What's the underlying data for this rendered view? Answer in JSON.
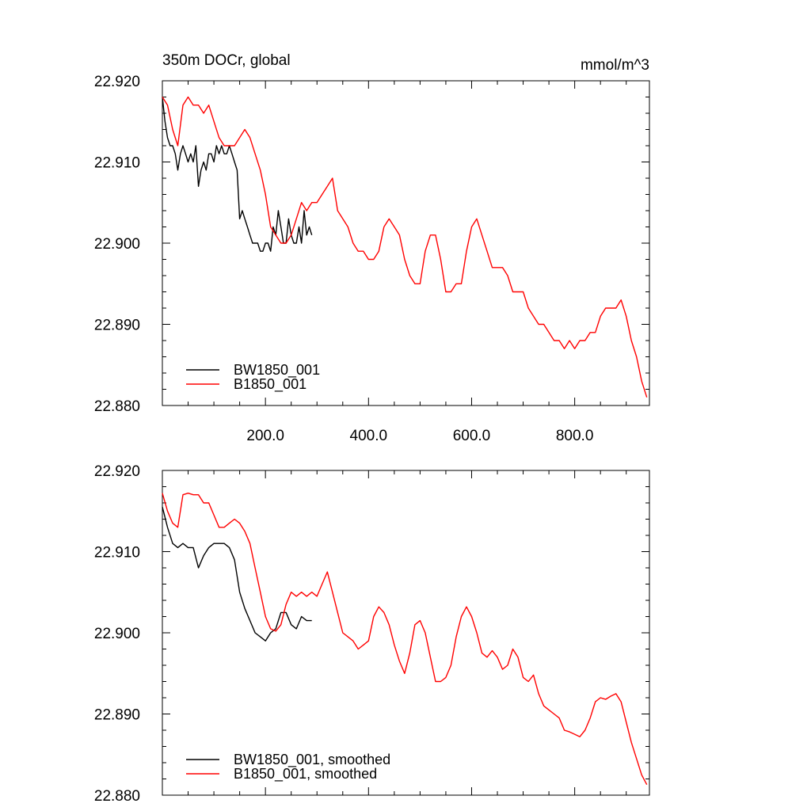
{
  "chart_data": [
    {
      "type": "line",
      "title": "350m DOCr, global",
      "units": "mmol/m^3",
      "xlim": [
        0,
        945
      ],
      "ylim": [
        22.88,
        22.92
      ],
      "x_ticks": [
        200,
        400,
        600,
        800
      ],
      "x_tick_labels": [
        "200.0",
        "400.0",
        "600.0",
        "800.0"
      ],
      "y_ticks": [
        22.88,
        22.89,
        22.9,
        22.91,
        22.92
      ],
      "y_tick_labels": [
        "22.880",
        "22.890",
        "22.900",
        "22.910",
        "22.920"
      ],
      "legend_position": "bottom-left",
      "series": [
        {
          "name": "BW1850_001",
          "color": "#000000",
          "x": [
            0,
            5,
            10,
            15,
            20,
            25,
            30,
            35,
            40,
            45,
            50,
            55,
            60,
            65,
            70,
            75,
            80,
            85,
            90,
            95,
            100,
            105,
            110,
            115,
            120,
            125,
            130,
            135,
            140,
            145,
            150,
            155,
            160,
            165,
            170,
            175,
            180,
            185,
            190,
            195,
            200,
            205,
            210,
            215,
            220,
            225,
            230,
            235,
            240,
            245,
            250,
            255,
            260,
            265,
            270,
            275,
            280,
            285,
            290
          ],
          "values": [
            22.918,
            22.915,
            22.913,
            22.912,
            22.912,
            22.911,
            22.909,
            22.911,
            22.912,
            22.911,
            22.91,
            22.911,
            22.91,
            22.912,
            22.907,
            22.909,
            22.91,
            22.909,
            22.911,
            22.911,
            22.91,
            22.912,
            22.911,
            22.912,
            22.911,
            22.911,
            22.912,
            22.911,
            22.91,
            22.909,
            22.903,
            22.904,
            22.903,
            22.902,
            22.901,
            22.9,
            22.9,
            22.9,
            22.899,
            22.899,
            22.9,
            22.9,
            22.899,
            22.902,
            22.901,
            22.904,
            22.902,
            22.9,
            22.9,
            22.903,
            22.901,
            22.9,
            22.9,
            22.902,
            22.9,
            22.904,
            22.901,
            22.902,
            22.901
          ]
        },
        {
          "name": "B1850_001",
          "color": "#ff0000",
          "x": [
            0,
            10,
            20,
            30,
            40,
            50,
            60,
            70,
            80,
            90,
            100,
            110,
            120,
            130,
            140,
            150,
            160,
            170,
            180,
            190,
            200,
            210,
            220,
            230,
            240,
            250,
            260,
            270,
            280,
            290,
            300,
            310,
            320,
            330,
            340,
            350,
            360,
            370,
            380,
            390,
            400,
            410,
            420,
            430,
            440,
            450,
            460,
            470,
            480,
            490,
            500,
            510,
            520,
            530,
            540,
            550,
            560,
            570,
            580,
            590,
            600,
            610,
            620,
            630,
            640,
            650,
            660,
            670,
            680,
            690,
            700,
            710,
            720,
            730,
            740,
            750,
            760,
            770,
            780,
            790,
            800,
            810,
            820,
            830,
            840,
            850,
            860,
            870,
            880,
            890,
            900,
            910,
            920,
            930,
            940
          ],
          "values": [
            22.918,
            22.917,
            22.914,
            22.912,
            22.917,
            22.918,
            22.917,
            22.917,
            22.916,
            22.917,
            22.915,
            22.913,
            22.912,
            22.912,
            22.912,
            22.913,
            22.914,
            22.913,
            22.911,
            22.909,
            22.906,
            22.902,
            22.901,
            22.9,
            22.9,
            22.901,
            22.903,
            22.905,
            22.904,
            22.905,
            22.905,
            22.906,
            22.907,
            22.908,
            22.904,
            22.903,
            22.902,
            22.9,
            22.899,
            22.899,
            22.898,
            22.898,
            22.899,
            22.902,
            22.903,
            22.902,
            22.901,
            22.898,
            22.896,
            22.895,
            22.895,
            22.899,
            22.901,
            22.901,
            22.898,
            22.894,
            22.894,
            22.895,
            22.895,
            22.899,
            22.902,
            22.903,
            22.901,
            22.899,
            22.897,
            22.897,
            22.897,
            22.896,
            22.894,
            22.894,
            22.894,
            22.892,
            22.891,
            22.89,
            22.89,
            22.889,
            22.888,
            22.888,
            22.887,
            22.888,
            22.887,
            22.888,
            22.888,
            22.889,
            22.889,
            22.891,
            22.892,
            22.892,
            22.892,
            22.893,
            22.891,
            22.888,
            22.886,
            22.883,
            22.881
          ]
        }
      ]
    },
    {
      "type": "line",
      "title": "",
      "units": "",
      "xlim": [
        0,
        945
      ],
      "ylim": [
        22.88,
        22.92
      ],
      "x_ticks": [
        200,
        400,
        600,
        800
      ],
      "x_tick_labels": [],
      "y_ticks": [
        22.88,
        22.89,
        22.9,
        22.91,
        22.92
      ],
      "y_tick_labels": [
        "22.880",
        "22.890",
        "22.900",
        "22.910",
        "22.920"
      ],
      "legend_position": "bottom-left",
      "series": [
        {
          "name": "BW1850_001, smoothed",
          "color": "#000000",
          "x": [
            0,
            10,
            20,
            30,
            40,
            50,
            60,
            70,
            80,
            90,
            100,
            110,
            120,
            130,
            140,
            150,
            160,
            170,
            180,
            190,
            200,
            210,
            220,
            230,
            240,
            250,
            260,
            270,
            280,
            290
          ],
          "values": [
            22.9155,
            22.913,
            22.911,
            22.9105,
            22.911,
            22.9105,
            22.9105,
            22.908,
            22.9095,
            22.9105,
            22.911,
            22.911,
            22.911,
            22.9105,
            22.909,
            22.905,
            22.903,
            22.9015,
            22.9,
            22.8995,
            22.899,
            22.9,
            22.9005,
            22.9025,
            22.9025,
            22.901,
            22.9005,
            22.902,
            22.9015,
            22.9015
          ]
        },
        {
          "name": "B1850_001, smoothed",
          "color": "#ff0000",
          "x": [
            0,
            10,
            20,
            30,
            40,
            50,
            60,
            70,
            80,
            90,
            100,
            110,
            120,
            130,
            140,
            150,
            160,
            170,
            180,
            190,
            200,
            210,
            220,
            230,
            240,
            250,
            260,
            270,
            280,
            290,
            300,
            310,
            320,
            330,
            340,
            350,
            360,
            370,
            380,
            390,
            400,
            410,
            420,
            430,
            440,
            450,
            460,
            470,
            480,
            490,
            500,
            510,
            520,
            530,
            540,
            550,
            560,
            570,
            580,
            590,
            600,
            610,
            620,
            630,
            640,
            650,
            660,
            670,
            680,
            690,
            700,
            710,
            720,
            730,
            740,
            750,
            760,
            770,
            780,
            790,
            800,
            810,
            820,
            830,
            840,
            850,
            860,
            870,
            880,
            890,
            900,
            910,
            920,
            930,
            940
          ],
          "values": [
            22.9172,
            22.915,
            22.9135,
            22.913,
            22.917,
            22.9172,
            22.917,
            22.917,
            22.916,
            22.916,
            22.9145,
            22.913,
            22.913,
            22.9135,
            22.914,
            22.9135,
            22.9125,
            22.911,
            22.908,
            22.905,
            22.902,
            22.9005,
            22.9002,
            22.901,
            22.9035,
            22.905,
            22.9045,
            22.905,
            22.9045,
            22.905,
            22.9045,
            22.906,
            22.9075,
            22.905,
            22.9025,
            22.9,
            22.8995,
            22.899,
            22.898,
            22.8985,
            22.899,
            22.902,
            22.9032,
            22.9025,
            22.901,
            22.8985,
            22.8965,
            22.895,
            22.8975,
            22.901,
            22.9015,
            22.9,
            22.897,
            22.894,
            22.894,
            22.8945,
            22.896,
            22.8995,
            22.902,
            22.9032,
            22.902,
            22.9,
            22.8975,
            22.897,
            22.8978,
            22.897,
            22.8955,
            22.896,
            22.898,
            22.897,
            22.8945,
            22.894,
            22.8948,
            22.8925,
            22.891,
            22.8905,
            22.89,
            22.8895,
            22.888,
            22.8878,
            22.8875,
            22.8872,
            22.888,
            22.8895,
            22.8915,
            22.892,
            22.8918,
            22.8922,
            22.8925,
            22.8915,
            22.889,
            22.8865,
            22.8845,
            22.8825,
            22.8813
          ]
        }
      ]
    }
  ]
}
